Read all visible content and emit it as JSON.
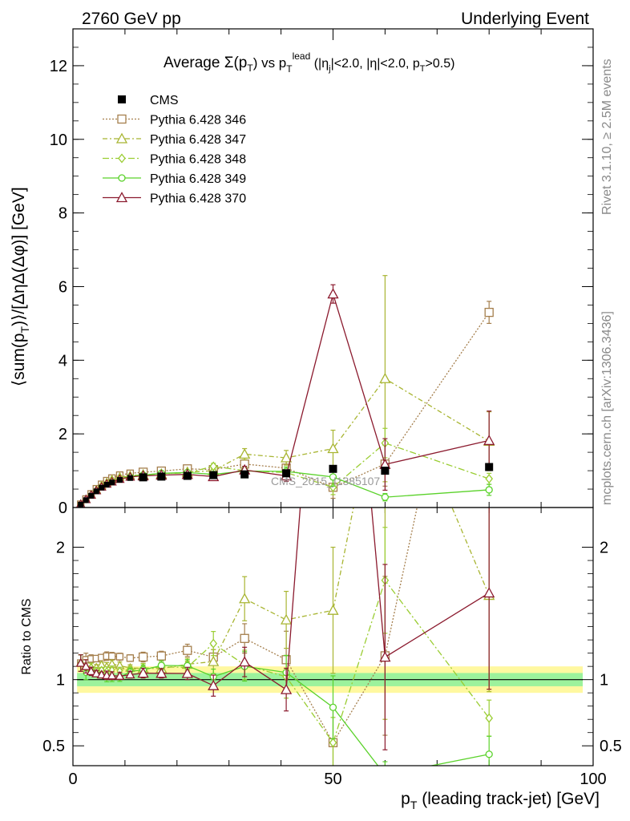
{
  "header": {
    "left": "2760 GeV pp",
    "right": "Underlying Event",
    "side_top": "Rivet 3.1.10, ≥ 2.5M events",
    "side_bottom": "mcplots.cern.ch [arXiv:1306.3436]"
  },
  "chart_data": [
    {
      "type": "line",
      "title_parts": {
        "a": "Average ",
        "b": "Σ(p",
        "c": "T",
        "d": ") vs p",
        "e": "T",
        "f": "lead",
        "g": " (|η",
        "h": "j",
        "i": "|<2.0, |η|<2.0, p",
        "j": "T",
        "k": ">0.5)"
      },
      "ylabel": "⟨sum(pₜ)⟩/[ΔηΔ(Δφ)] [GeV]",
      "ylabel_parts": {
        "a": "⟨sum(p",
        "b": "T",
        "c": ")⟩/[ΔηΔ(Δφ)] [GeV]"
      },
      "xlim": [
        0,
        100
      ],
      "ylim": [
        0,
        13
      ],
      "y_ticks": [
        "0",
        "2",
        "4",
        "6",
        "8",
        "10",
        "12"
      ],
      "watermark": "CMS_2015_I1385107",
      "legend_position": "top-left",
      "x": [
        1.5,
        2.5,
        3.5,
        4.5,
        5.5,
        6.5,
        7.5,
        9,
        11,
        13.5,
        17,
        22,
        27,
        33,
        41,
        50,
        60,
        80
      ],
      "cms": {
        "name": "CMS",
        "color": "#000000",
        "values": [
          0.08,
          0.2,
          0.32,
          0.44,
          0.54,
          0.62,
          0.68,
          0.75,
          0.8,
          0.82,
          0.84,
          0.86,
          0.88,
          0.9,
          0.93,
          1.05,
          1.0,
          1.1
        ],
        "band_total": 0.1,
        "band_stat": 0.05
      },
      "series": [
        {
          "name": "Pythia 6.428 346",
          "color": "#a57f4d",
          "dash": "2,2",
          "marker": "square",
          "values": [
            0.09,
            0.23,
            0.37,
            0.51,
            0.63,
            0.73,
            0.8,
            0.88,
            0.93,
            0.96,
            0.99,
            1.05,
            1.03,
            1.18,
            1.07,
            0.55,
            1.18,
            5.3
          ],
          "err": [
            0.005,
            0.01,
            0.01,
            0.01,
            0.01,
            0.02,
            0.02,
            0.02,
            0.02,
            0.03,
            0.03,
            0.04,
            0.05,
            0.1,
            0.2,
            0.3,
            0.6,
            0.3
          ]
        },
        {
          "name": "Pythia 6.428 347",
          "color": "#a8b532",
          "dash": "6,3,2,3",
          "marker": "triangle",
          "values": [
            0.09,
            0.22,
            0.35,
            0.48,
            0.6,
            0.68,
            0.76,
            0.83,
            0.87,
            0.89,
            0.91,
            0.96,
            1.0,
            1.45,
            1.35,
            1.6,
            3.5,
            1.8
          ],
          "err": [
            0.005,
            0.01,
            0.01,
            0.01,
            0.01,
            0.02,
            0.02,
            0.02,
            0.02,
            0.03,
            0.03,
            0.04,
            0.08,
            0.15,
            0.2,
            0.5,
            2.8,
            0.8
          ]
        },
        {
          "name": "Pythia 6.428 348",
          "color": "#9acd32",
          "dash": "8,3,2,3",
          "marker": "diamond",
          "values": [
            0.09,
            0.22,
            0.35,
            0.47,
            0.58,
            0.66,
            0.73,
            0.8,
            0.86,
            0.89,
            0.92,
            0.94,
            1.12,
            1.0,
            0.95,
            0.55,
            1.75,
            0.78
          ],
          "err": [
            0.005,
            0.01,
            0.01,
            0.01,
            0.01,
            0.02,
            0.02,
            0.02,
            0.02,
            0.03,
            0.03,
            0.04,
            0.08,
            0.1,
            0.15,
            0.2,
            0.4,
            0.15
          ]
        },
        {
          "name": "Pythia 6.428 349",
          "color": "#5ad22a",
          "dash": "",
          "marker": "circle",
          "values": [
            0.09,
            0.21,
            0.34,
            0.46,
            0.56,
            0.63,
            0.69,
            0.76,
            0.85,
            0.88,
            0.93,
            0.95,
            0.9,
            0.99,
            0.98,
            0.83,
            0.28,
            0.48
          ],
          "err": [
            0.005,
            0.01,
            0.01,
            0.01,
            0.01,
            0.02,
            0.02,
            0.02,
            0.02,
            0.03,
            0.03,
            0.04,
            0.05,
            0.1,
            0.12,
            0.25,
            0.1,
            0.15
          ]
        },
        {
          "name": "Pythia 6.428 370",
          "color": "#8b1a2e",
          "dash": "",
          "marker": "triangle",
          "values": [
            0.09,
            0.22,
            0.34,
            0.46,
            0.56,
            0.64,
            0.7,
            0.77,
            0.83,
            0.86,
            0.88,
            0.9,
            0.84,
            1.02,
            0.86,
            5.8,
            1.17,
            1.82
          ],
          "err": [
            0.005,
            0.01,
            0.01,
            0.01,
            0.01,
            0.02,
            0.02,
            0.02,
            0.02,
            0.03,
            0.03,
            0.04,
            0.07,
            0.1,
            0.15,
            0.25,
            0.7,
            0.8
          ]
        }
      ]
    },
    {
      "type": "line",
      "ylabel": "Ratio to CMS",
      "xlabel_parts": {
        "a": "p",
        "b": "T",
        "c": " (leading track-jet) [GeV]"
      },
      "xlim": [
        0,
        100
      ],
      "ylim": [
        0.35,
        2.3
      ],
      "y_ticks": [
        "0.5",
        "1",
        "2"
      ],
      "x_ticks": [
        "0",
        "50",
        "100"
      ],
      "reference": 1
    }
  ]
}
